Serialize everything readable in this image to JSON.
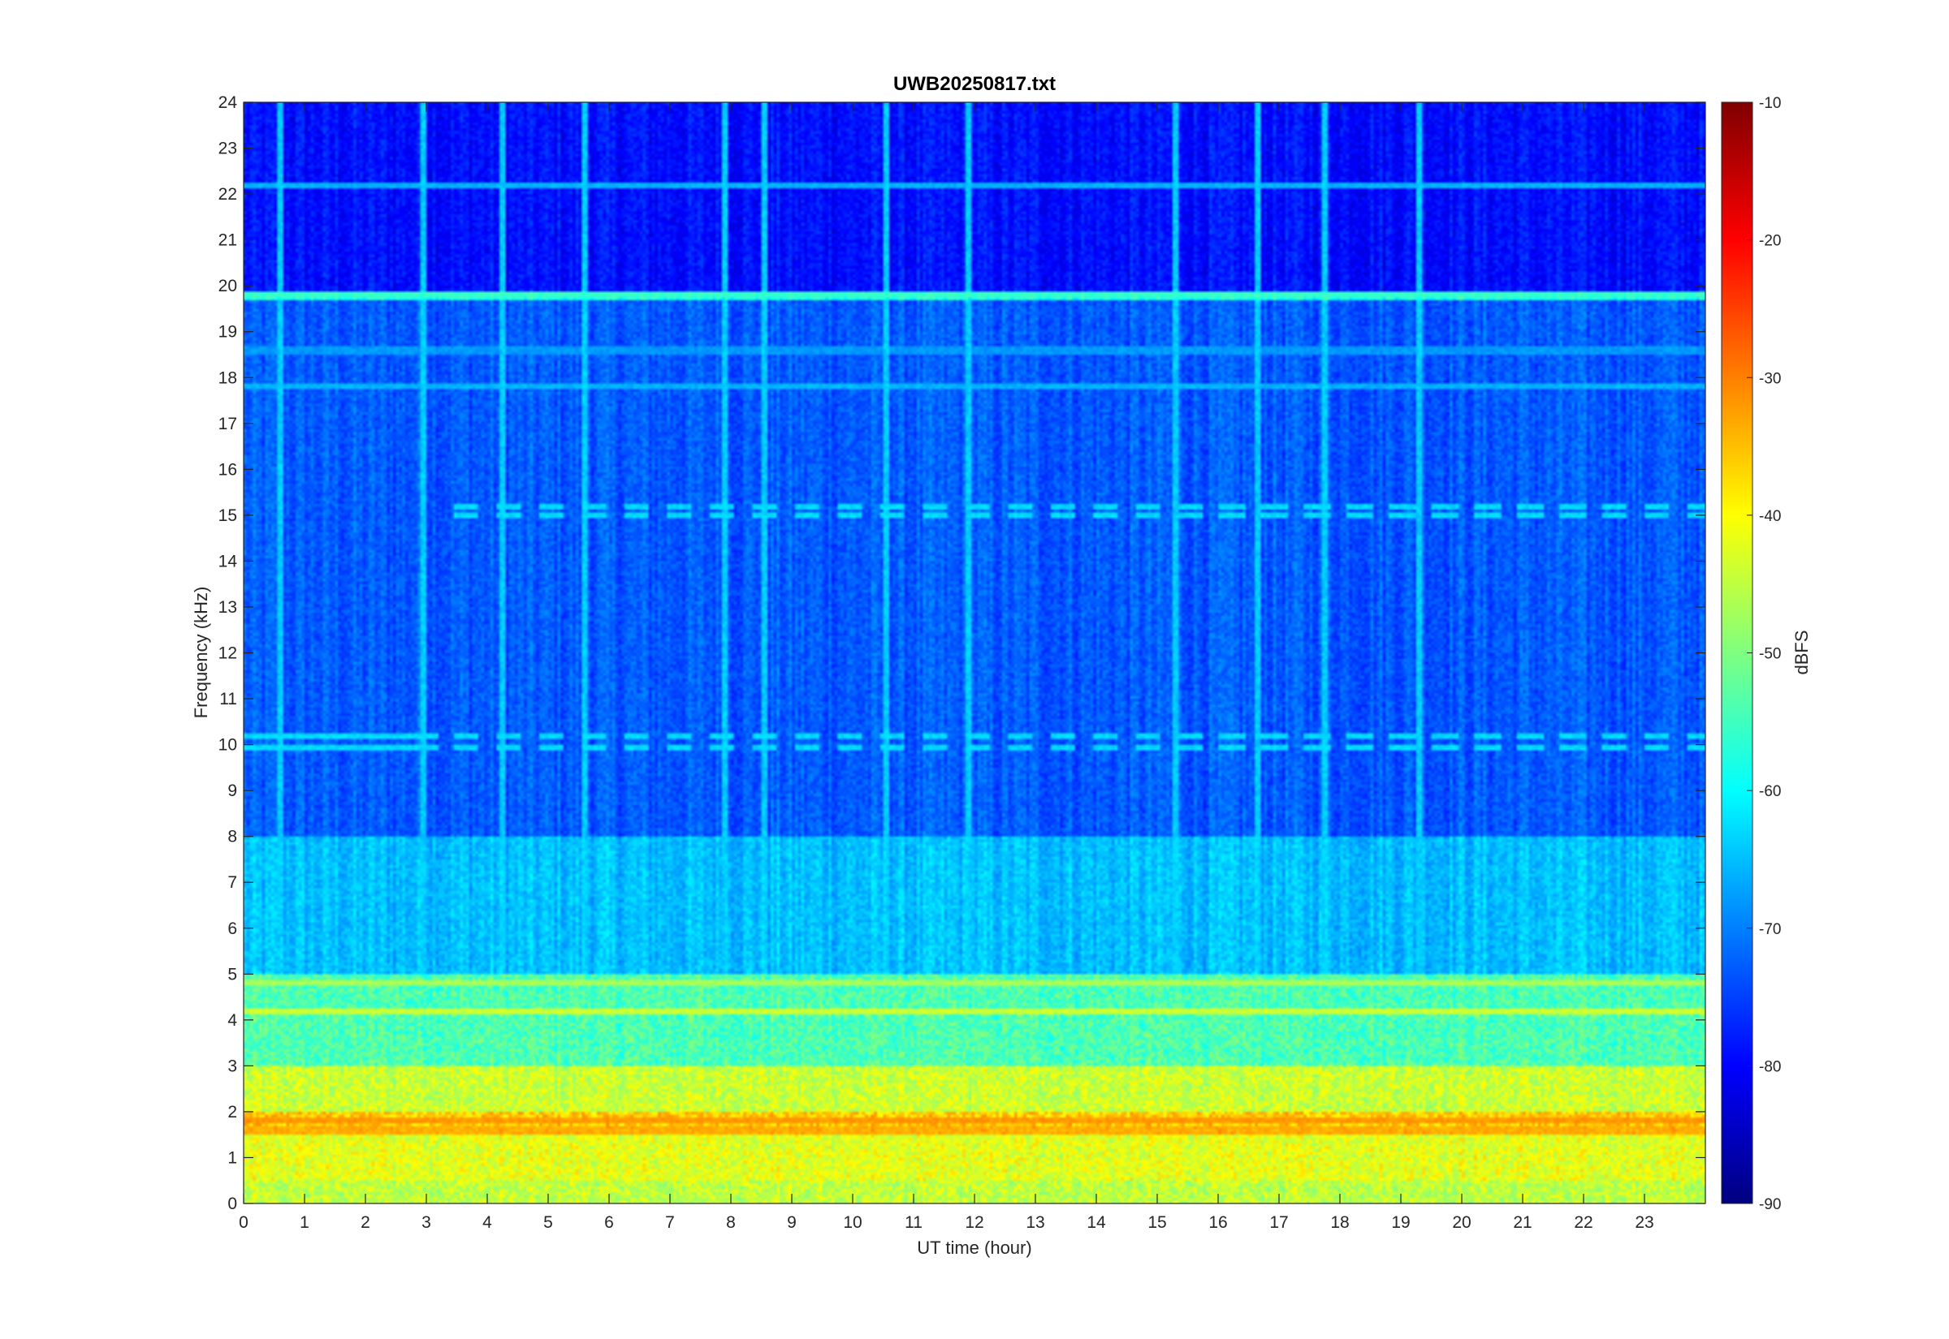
{
  "chart_data": {
    "type": "heatmap",
    "title": "UWB20250817.txt",
    "xlabel": "UT time (hour)",
    "ylabel": "Frequency (kHz)",
    "xlim": [
      0,
      24
    ],
    "ylim": [
      0,
      24
    ],
    "x_ticks": [
      "0",
      "1",
      "2",
      "3",
      "4",
      "5",
      "6",
      "7",
      "8",
      "9",
      "10",
      "11",
      "12",
      "13",
      "14",
      "15",
      "16",
      "17",
      "18",
      "19",
      "20",
      "21",
      "22",
      "23"
    ],
    "y_ticks": [
      "0",
      "1",
      "2",
      "3",
      "4",
      "5",
      "6",
      "7",
      "8",
      "9",
      "10",
      "11",
      "12",
      "13",
      "14",
      "15",
      "16",
      "17",
      "18",
      "19",
      "20",
      "21",
      "22",
      "23",
      "24"
    ],
    "colorbar": {
      "label": "dBFS",
      "range": [
        -90,
        -10
      ],
      "ticks": [
        "-10",
        "-20",
        "-30",
        "-40",
        "-50",
        "-60",
        "-70",
        "-80",
        "-90"
      ],
      "colormap": "jet"
    },
    "levels": {
      "note_keys": "frequency band (kHz) -> approximate dBFS level",
      "bands": [
        {
          "from": 0,
          "to": 0.5,
          "dBFS": -45
        },
        {
          "from": 0.5,
          "to": 1.5,
          "dBFS": -42
        },
        {
          "from": 1.5,
          "to": 2.0,
          "dBFS": -36
        },
        {
          "from": 2.0,
          "to": 3.0,
          "dBFS": -44
        },
        {
          "from": 3.0,
          "to": 5.0,
          "dBFS": -54
        },
        {
          "from": 5.0,
          "to": 8.0,
          "dBFS": -65
        },
        {
          "from": 8.0,
          "to": 19.7,
          "dBFS": -73
        },
        {
          "from": 19.7,
          "to": 19.9,
          "dBFS": -58
        },
        {
          "from": 19.9,
          "to": 24,
          "dBFS": -79
        }
      ],
      "lines_kHz": [
        {
          "f": 19.8,
          "dBFS": -56
        },
        {
          "f": 22.2,
          "dBFS": -66
        },
        {
          "f": 15.2,
          "dBFS": -63
        },
        {
          "f": 15.0,
          "dBFS": -63
        },
        {
          "f": 10.2,
          "dBFS": -63
        },
        {
          "f": 9.95,
          "dBFS": -63
        },
        {
          "f": 17.8,
          "dBFS": -66
        },
        {
          "f": 18.6,
          "dBFS": -68
        },
        {
          "f": 4.8,
          "dBFS": -47
        },
        {
          "f": 4.2,
          "dBFS": -44
        },
        {
          "f": 1.8,
          "dBFS": -32
        },
        {
          "f": 1.6,
          "dBFS": -34
        }
      ],
      "vertical_streaks_hour": [
        0.6,
        2.95,
        4.25,
        5.6,
        7.9,
        8.55,
        10.55,
        11.9,
        15.3,
        16.65,
        17.75,
        19.3
      ]
    }
  }
}
